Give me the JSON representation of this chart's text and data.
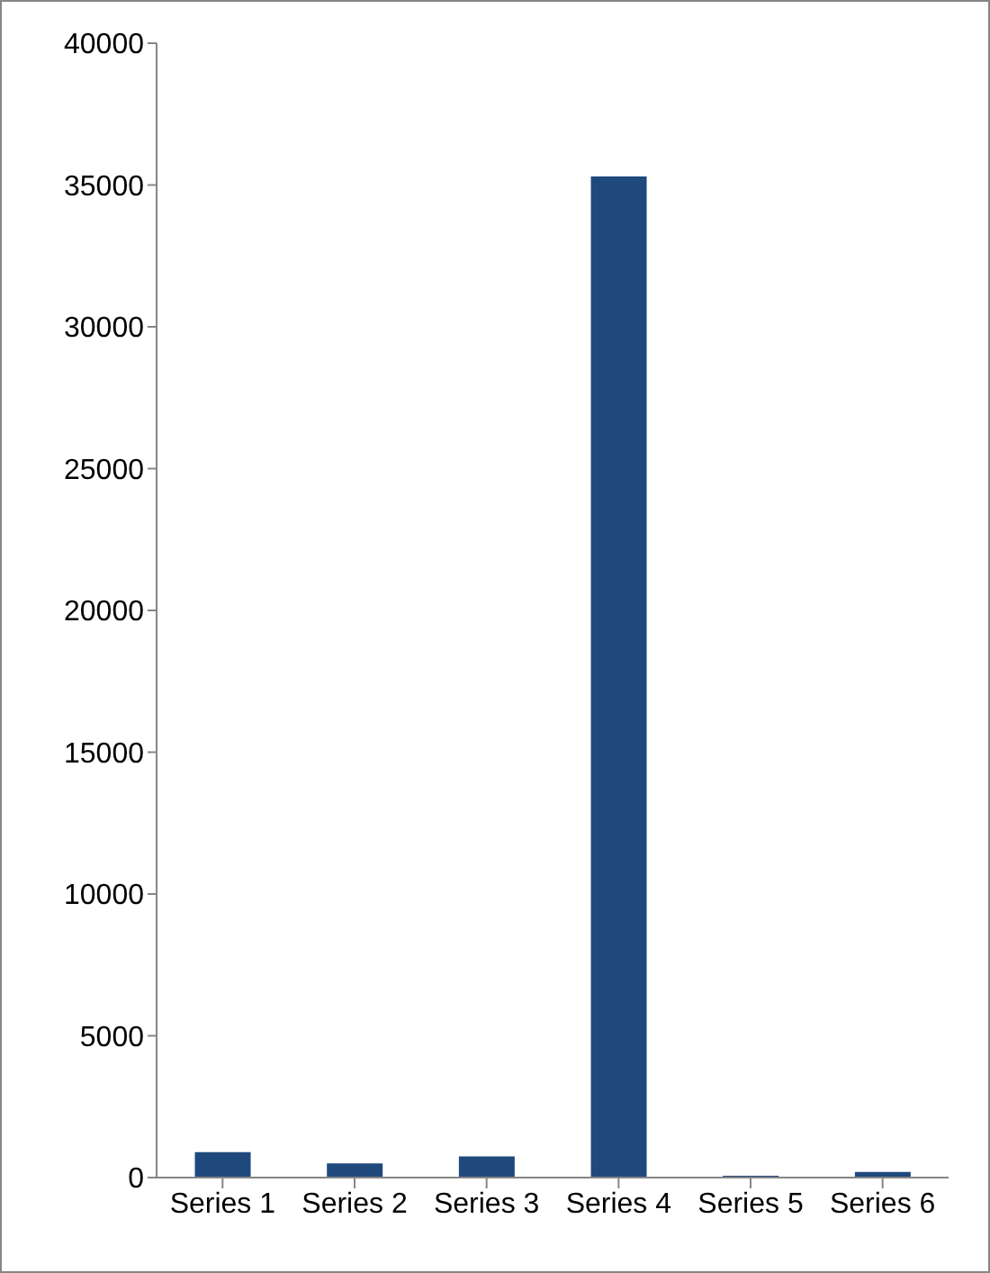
{
  "chart_data": {
    "type": "bar",
    "categories": [
      "Series 1",
      "Series 2",
      "Series 3",
      "Series 4",
      "Series 5",
      "Series 6"
    ],
    "values": [
      900,
      500,
      750,
      35300,
      60,
      200
    ],
    "color": "#1f497d",
    "ylim": [
      0,
      40000
    ],
    "yticks": [
      0,
      5000,
      10000,
      15000,
      20000,
      25000,
      30000,
      35000,
      40000
    ],
    "grid": false,
    "legend": false
  }
}
